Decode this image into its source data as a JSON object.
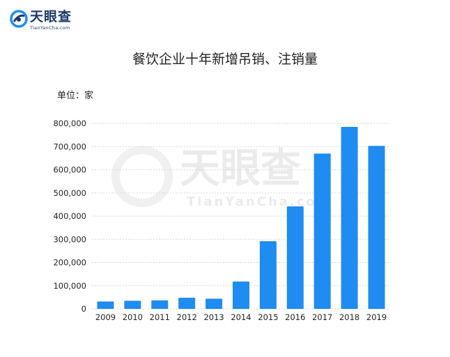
{
  "brand": {
    "name": "天眼查",
    "sub": "TianYanCha.com",
    "color": "#1b3a6b",
    "accent": "#1e8cf0"
  },
  "watermark": {
    "name": "天眼查",
    "sub": "TianYanCha.com"
  },
  "chart_data": {
    "type": "bar",
    "title": "餐饮企业十年新增吊销、注销量",
    "unit_label": "单位：家",
    "categories": [
      "2009",
      "2010",
      "2011",
      "2012",
      "2013",
      "2014",
      "2015",
      "2016",
      "2017",
      "2018",
      "2019"
    ],
    "values": [
      32000,
      35000,
      37000,
      48000,
      44000,
      118000,
      292000,
      442000,
      670000,
      785000,
      703000
    ],
    "yticks": [
      "0",
      "100,000",
      "200,000",
      "300,000",
      "400,000",
      "500,000",
      "600,000",
      "700,000",
      "800,000"
    ],
    "ylim": [
      0,
      800000
    ],
    "grid": true,
    "bar_color": "#1e8cf0"
  }
}
